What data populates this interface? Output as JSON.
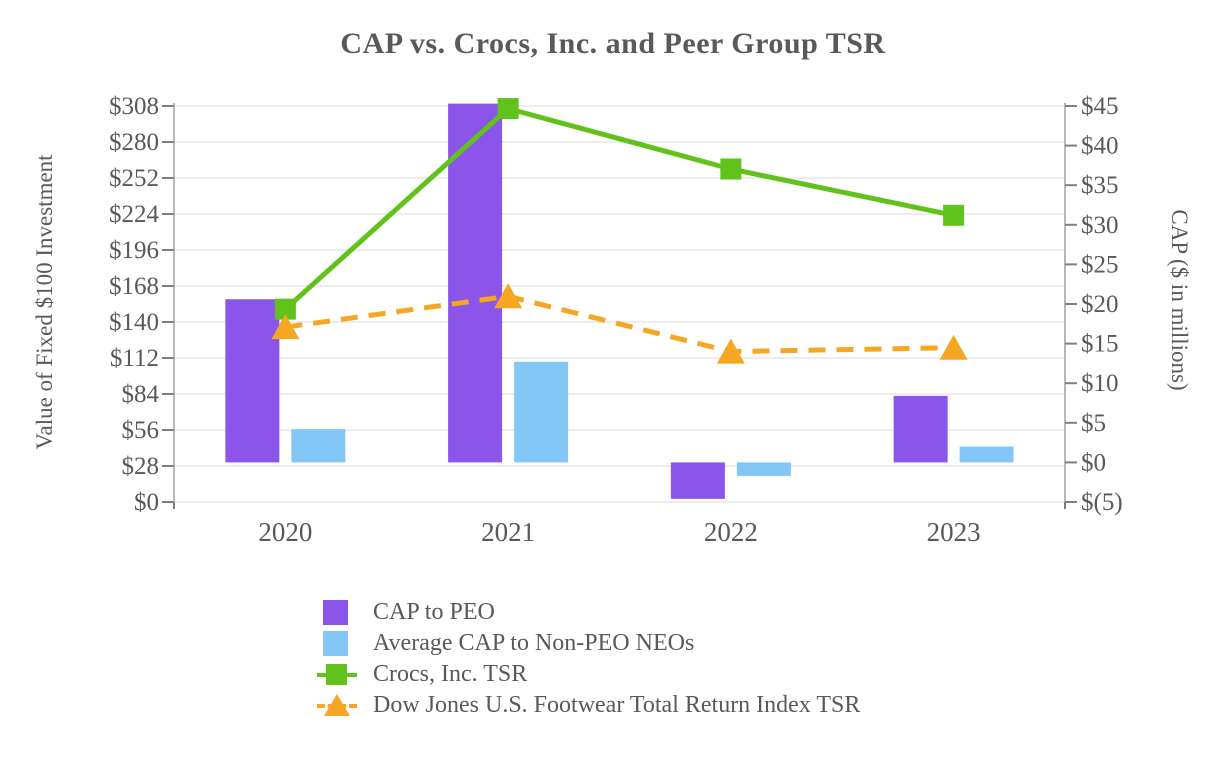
{
  "chart_data": {
    "type": "combo-bar-line",
    "title": "CAP vs. Crocs, Inc. and Peer Group TSR",
    "categories": [
      "2020",
      "2021",
      "2022",
      "2023"
    ],
    "left_axis": {
      "label": "Value of Fixed $100 Investment",
      "min": 0,
      "max": 308,
      "step": 28,
      "tick_labels": [
        "$0",
        "$28",
        "$56",
        "$84",
        "$112",
        "$140",
        "$168",
        "$196",
        "$224",
        "$252",
        "$280",
        "$308"
      ]
    },
    "right_axis": {
      "label": "CAP ($ in millions)",
      "min": -5,
      "max": 45,
      "step": 5,
      "tick_labels": [
        "$(5)",
        "$0",
        "$5",
        "$10",
        "$15",
        "$20",
        "$25",
        "$30",
        "$35",
        "$40",
        "$45"
      ]
    },
    "series": [
      {
        "name": "CAP to PEO",
        "type": "bar",
        "axis": "right",
        "color": "#8A55E8",
        "values": [
          20.6,
          45.3,
          -4.6,
          8.4
        ]
      },
      {
        "name": "Average CAP to Non-PEO NEOs",
        "type": "bar",
        "axis": "right",
        "color": "#82C7F5",
        "values": [
          4.2,
          12.7,
          -1.7,
          2.0
        ]
      },
      {
        "name": "Crocs, Inc. TSR",
        "type": "line",
        "marker": "square",
        "dashed": false,
        "axis": "left",
        "color": "#62C21C",
        "values": [
          150,
          306,
          259,
          223
        ]
      },
      {
        "name": "Dow Jones U.S. Footwear Total Return Index TSR",
        "type": "line",
        "marker": "triangle",
        "dashed": true,
        "axis": "left",
        "color": "#F5A623",
        "values": [
          136,
          160,
          117,
          120
        ]
      }
    ],
    "grid": "horizontal-only",
    "legend_position": "bottom-left",
    "colors": {
      "text": "#595959",
      "gridline": "#E7E7E7",
      "axis_line": "#A6A6A6",
      "tick_mark": "#808080",
      "background": "#FFFFFF"
    }
  }
}
